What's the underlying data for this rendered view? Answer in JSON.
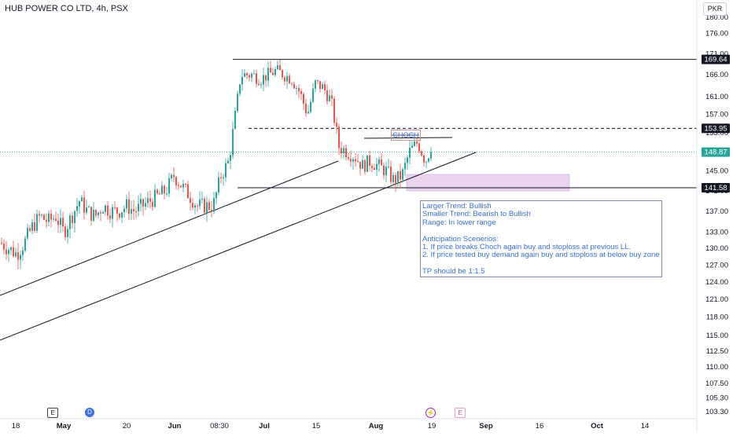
{
  "header": {
    "title": "HUB POWER CO LTD, 4h, PSX",
    "currency": "PKR"
  },
  "chart_data": {
    "type": "candlestick",
    "y_scale": "log",
    "y_ticks": [
      180.0,
      176.0,
      171.0,
      166.0,
      161.0,
      157.0,
      153.0,
      149.0,
      145.0,
      141.0,
      137.0,
      133.0,
      130.0,
      127.0,
      124.0,
      121.0,
      118.0,
      115.0,
      112.5,
      110.0,
      107.5,
      105.3,
      103.3
    ],
    "x_ticks": [
      "18",
      "May",
      "20",
      "Jun",
      "08:30",
      "Jul",
      "15",
      "Aug",
      "19",
      "Sep",
      "16",
      "Oct",
      "14"
    ],
    "price_labels": [
      {
        "value": "169.64",
        "style": "dark"
      },
      {
        "value": "153.95",
        "style": "dark"
      },
      {
        "value": "148.87",
        "style": "green"
      },
      {
        "value": "141.58",
        "style": "dark"
      }
    ],
    "annotation_label": "CHOCH",
    "note_lines": [
      "Larger Trend: Bullish",
      "Smaller Trend: Bearish to Bullish",
      "Range: In lower range",
      "",
      "Anticipation Scenerios:",
      "1. If price breaks Choch again buy and stoploss at previous LL.",
      "2. If price tested buy demand again buy and stoploss at below buy zone",
      "",
      "TP should be 1:1.5"
    ],
    "event_markers": [
      "E",
      "D",
      "E"
    ],
    "price_path": [
      [
        0,
        131
      ],
      [
        10,
        130
      ],
      [
        20,
        129
      ],
      [
        30,
        131
      ],
      [
        40,
        134
      ],
      [
        50,
        136
      ],
      [
        60,
        135
      ],
      [
        70,
        136
      ],
      [
        80,
        133
      ],
      [
        90,
        136
      ],
      [
        100,
        139
      ],
      [
        110,
        137
      ],
      [
        120,
        136
      ],
      [
        130,
        138
      ],
      [
        140,
        137
      ],
      [
        150,
        137
      ],
      [
        160,
        138
      ],
      [
        170,
        137
      ],
      [
        180,
        138
      ],
      [
        190,
        139
      ],
      [
        200,
        140
      ],
      [
        210,
        141
      ],
      [
        220,
        144
      ],
      [
        230,
        142
      ],
      [
        240,
        140
      ],
      [
        250,
        138
      ],
      [
        260,
        138
      ],
      [
        270,
        138
      ],
      [
        280,
        144
      ],
      [
        290,
        147
      ],
      [
        300,
        159
      ],
      [
        305,
        166
      ],
      [
        310,
        166
      ],
      [
        320,
        166
      ],
      [
        330,
        165
      ],
      [
        340,
        166
      ],
      [
        350,
        167
      ],
      [
        360,
        166
      ],
      [
        370,
        165
      ],
      [
        380,
        162
      ],
      [
        390,
        157
      ],
      [
        400,
        164
      ],
      [
        410,
        163
      ],
      [
        420,
        160
      ],
      [
        430,
        150
      ],
      [
        440,
        149
      ],
      [
        450,
        148
      ],
      [
        460,
        146
      ],
      [
        470,
        147
      ],
      [
        480,
        146
      ],
      [
        490,
        145
      ],
      [
        500,
        143
      ],
      [
        510,
        144
      ],
      [
        520,
        149
      ],
      [
        530,
        151
      ],
      [
        540,
        147
      ],
      [
        545,
        149
      ],
      [
        550,
        148.87
      ]
    ]
  },
  "colors": {
    "up": "#26a69a",
    "down": "#ef5350",
    "demand_zone": "#e8cdee",
    "note_text": "#3c6fe0",
    "current_price": "#26a69a"
  }
}
